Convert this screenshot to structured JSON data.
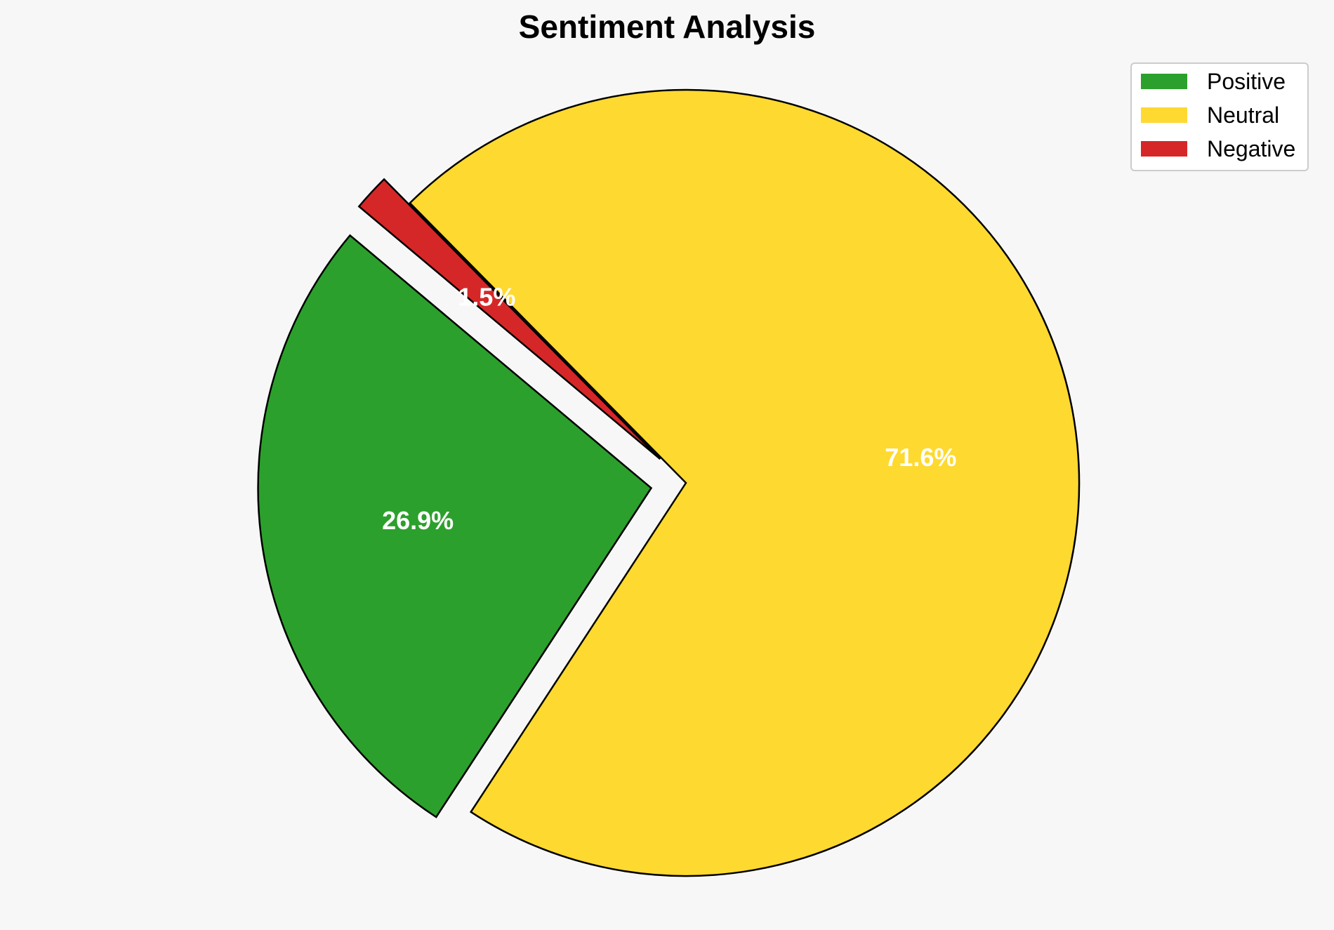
{
  "chart_data": {
    "type": "pie",
    "title": "Sentiment Analysis",
    "categories": [
      "Positive",
      "Neutral",
      "Negative"
    ],
    "values": [
      26.9,
      71.6,
      1.5
    ],
    "value_labels": [
      "26.9%",
      "71.6%",
      "1.5%"
    ],
    "colors": [
      "#2ca02c",
      "#fed930",
      "#d62728"
    ],
    "legend": {
      "placement": "top-right",
      "entries": [
        "Positive",
        "Neutral",
        "Negative"
      ]
    }
  }
}
